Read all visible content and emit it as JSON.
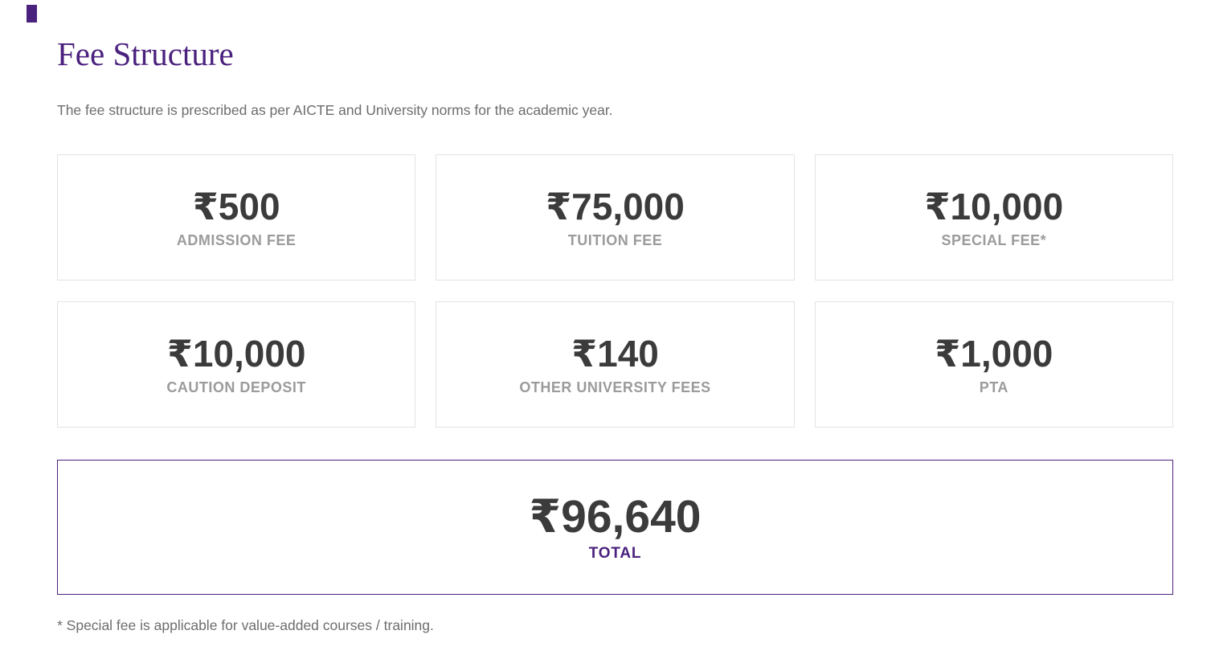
{
  "page": {
    "title": "Fee Structure",
    "description": "The fee structure is prescribed as per AICTE and University norms for the academic year.",
    "footnote": "* Special fee is applicable for value-added courses / training."
  },
  "fees": {
    "cards": [
      {
        "amount": "₹500",
        "label": "ADMISSION FEE"
      },
      {
        "amount": "₹75,000",
        "label": "TUITION FEE"
      },
      {
        "amount": "₹10,000",
        "label": "SPECIAL FEE*"
      },
      {
        "amount": "₹10,000",
        "label": "CAUTION DEPOSIT"
      },
      {
        "amount": "₹140",
        "label": "OTHER UNIVERSITY FEES"
      },
      {
        "amount": "₹1,000",
        "label": "PTA"
      }
    ],
    "total": {
      "amount": "₹96,640",
      "label": "TOTAL"
    }
  },
  "colors": {
    "accent_purple": "#4b217e",
    "amount_text": "#3b3b3b",
    "label_text": "#9b9b9b",
    "body_text": "#6d6d6d",
    "card_border": "#e3e3e3"
  }
}
